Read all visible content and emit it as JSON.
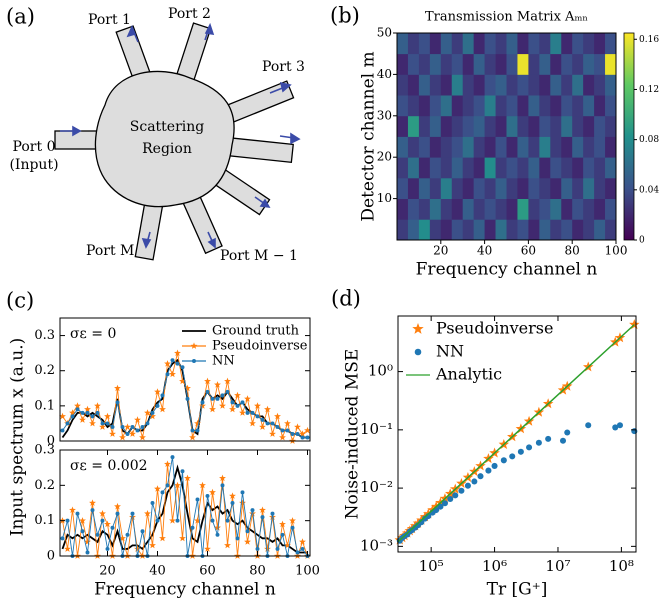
{
  "panel_a": {
    "panel_label": "(a)",
    "port_1": "Port 1",
    "port_2": "Port 2",
    "port_3": "Port 3",
    "port_0": "Port 0",
    "port_0_note": "(Input)",
    "region_line_1": "Scattering",
    "region_line_2": "Region",
    "port_m": "Port M",
    "port_m_minus_1": "Port M − 1"
  },
  "chart_data": [
    {
      "type": "heatmap",
      "panel_label": "(b)",
      "title": "Transmission Matrix Aₘₙ",
      "xlabel": "Frequency channel n",
      "ylabel": "Detector channel m",
      "xlim": [
        0,
        100
      ],
      "ylim": [
        0,
        50
      ],
      "xticks": [
        20,
        40,
        60,
        80,
        100
      ],
      "yticks": [
        10,
        20,
        30,
        40,
        50
      ],
      "zlim": [
        0,
        0.165
      ],
      "cticks": [
        0,
        0.04,
        0.08,
        0.12,
        0.16
      ],
      "colormap": [
        "#440154",
        "#3b528b",
        "#21918c",
        "#5ec962",
        "#fde725"
      ],
      "z": [
        [
          0.03,
          0.05,
          0.08,
          0.03,
          0.02,
          0.04,
          0.03,
          0.05,
          0.02,
          0.06,
          0.03,
          0.04,
          0.02,
          0.05,
          0.03,
          0.04,
          0.02,
          0.03,
          0.05,
          0.03
        ],
        [
          0.02,
          0.04,
          0.03,
          0.06,
          0.03,
          0.02,
          0.05,
          0.03,
          0.04,
          0.03,
          0.02,
          0.09,
          0.03,
          0.04,
          0.06,
          0.02,
          0.04,
          0.03,
          0.02,
          0.04
        ],
        [
          0.04,
          0.02,
          0.05,
          0.03,
          0.07,
          0.03,
          0.02,
          0.04,
          0.03,
          0.05,
          0.03,
          0.02,
          0.04,
          0.03,
          0.02,
          0.05,
          0.03,
          0.06,
          0.03,
          0.02
        ],
        [
          0.03,
          0.06,
          0.02,
          0.04,
          0.03,
          0.05,
          0.03,
          0.02,
          0.08,
          0.03,
          0.04,
          0.03,
          0.05,
          0.02,
          0.04,
          0.03,
          0.02,
          0.04,
          0.03,
          0.05
        ],
        [
          0.05,
          0.03,
          0.04,
          0.02,
          0.03,
          0.04,
          0.06,
          0.03,
          0.02,
          0.04,
          0.02,
          0.05,
          0.03,
          0.07,
          0.03,
          0.02,
          0.05,
          0.03,
          0.04,
          0.02
        ],
        [
          0.02,
          0.09,
          0.03,
          0.05,
          0.02,
          0.03,
          0.04,
          0.05,
          0.03,
          0.02,
          0.06,
          0.03,
          0.02,
          0.04,
          0.03,
          0.06,
          0.03,
          0.02,
          0.04,
          0.03
        ],
        [
          0.04,
          0.03,
          0.02,
          0.04,
          0.06,
          0.02,
          0.03,
          0.04,
          0.07,
          0.03,
          0.04,
          0.02,
          0.05,
          0.03,
          0.02,
          0.04,
          0.03,
          0.05,
          0.02,
          0.04
        ],
        [
          0.03,
          0.02,
          0.05,
          0.03,
          0.02,
          0.07,
          0.03,
          0.02,
          0.04,
          0.05,
          0.03,
          0.04,
          0.03,
          0.02,
          0.05,
          0.03,
          0.06,
          0.02,
          0.03,
          0.05
        ],
        [
          0.02,
          0.04,
          0.03,
          0.05,
          0.03,
          0.04,
          0.02,
          0.05,
          0.03,
          0.02,
          0.04,
          0.16,
          0.03,
          0.05,
          0.02,
          0.04,
          0.03,
          0.05,
          0.04,
          0.16
        ],
        [
          0.05,
          0.03,
          0.04,
          0.02,
          0.05,
          0.03,
          0.06,
          0.02,
          0.04,
          0.03,
          0.05,
          0.02,
          0.04,
          0.03,
          0.07,
          0.02,
          0.04,
          0.03,
          0.02,
          0.04
        ]
      ]
    },
    {
      "type": "line",
      "panel_label": "(c)",
      "ylabel": "Input spectrum x (a.u.)",
      "annotation": "σε = 0",
      "legend": "upper right",
      "xlim": [
        1,
        101
      ],
      "ylim": [
        0,
        0.35
      ],
      "yticks": [
        0,
        0.1,
        0.2,
        0.3
      ],
      "x": [
        2,
        4,
        6,
        8,
        10,
        12,
        14,
        16,
        18,
        20,
        22,
        24,
        26,
        28,
        30,
        32,
        34,
        36,
        38,
        40,
        42,
        44,
        46,
        48,
        50,
        52,
        54,
        56,
        58,
        60,
        62,
        64,
        66,
        68,
        70,
        72,
        74,
        76,
        78,
        80,
        82,
        84,
        86,
        88,
        90,
        92,
        94,
        96,
        98,
        100
      ],
      "series": [
        {
          "name": "Ground truth",
          "color": "#000000",
          "marker": "none",
          "values": [
            0.01,
            0.03,
            0.06,
            0.08,
            0.08,
            0.07,
            0.08,
            0.07,
            0.06,
            0.04,
            0.05,
            0.12,
            0.03,
            0.02,
            0.04,
            0.03,
            0.03,
            0.05,
            0.09,
            0.11,
            0.12,
            0.2,
            0.22,
            0.23,
            0.2,
            0.12,
            0.03,
            0.02,
            0.12,
            0.14,
            0.12,
            0.13,
            0.12,
            0.14,
            0.12,
            0.1,
            0.11,
            0.09,
            0.08,
            0.07,
            0.07,
            0.05,
            0.05,
            0.04,
            0.03,
            0.03,
            0.02,
            0.02,
            0.01,
            0.01
          ]
        },
        {
          "name": "Pseudoinverse",
          "color": "#ff7f0e",
          "marker": "star",
          "values": [
            0.07,
            0.05,
            0.08,
            0.1,
            0.06,
            0.09,
            0.05,
            0.1,
            0.04,
            0.07,
            0.02,
            0.15,
            0.01,
            0.04,
            0.02,
            0.06,
            0.01,
            0.08,
            0.07,
            0.14,
            0.09,
            0.22,
            0.19,
            0.25,
            0.17,
            0.15,
            0.01,
            0.05,
            0.1,
            0.17,
            0.09,
            0.16,
            0.1,
            0.17,
            0.09,
            0.13,
            0.08,
            0.12,
            0.05,
            0.1,
            0.04,
            0.09,
            0.02,
            0.07,
            0.01,
            0.05,
            0.0,
            0.04,
            0.02,
            0.03
          ]
        },
        {
          "name": "NN",
          "color": "#1f77b4",
          "marker": "circle",
          "values": [
            0.03,
            0.05,
            0.07,
            0.09,
            0.08,
            0.08,
            0.07,
            0.08,
            0.05,
            0.05,
            0.04,
            0.11,
            0.04,
            0.02,
            0.04,
            0.03,
            0.04,
            0.05,
            0.08,
            0.1,
            0.13,
            0.19,
            0.23,
            0.22,
            0.21,
            0.12,
            0.03,
            0.03,
            0.11,
            0.14,
            0.12,
            0.12,
            0.13,
            0.14,
            0.11,
            0.1,
            0.11,
            0.08,
            0.08,
            0.07,
            0.06,
            0.05,
            0.05,
            0.04,
            0.03,
            0.03,
            0.02,
            0.02,
            0.01,
            0.01
          ]
        }
      ]
    },
    {
      "type": "line",
      "xlabel": "Frequency channel n",
      "annotation": "σε = 0.002",
      "xlim": [
        1,
        101
      ],
      "ylim": [
        0,
        0.3
      ],
      "xticks": [
        20,
        40,
        60,
        80,
        100
      ],
      "yticks": [
        0,
        0.1,
        0.2,
        0.3
      ],
      "x": [
        2,
        4,
        6,
        8,
        10,
        12,
        14,
        16,
        18,
        20,
        22,
        24,
        26,
        28,
        30,
        32,
        34,
        36,
        38,
        40,
        42,
        44,
        46,
        48,
        50,
        52,
        54,
        56,
        58,
        60,
        62,
        64,
        66,
        68,
        70,
        72,
        74,
        76,
        78,
        80,
        82,
        84,
        86,
        88,
        90,
        92,
        94,
        96,
        98,
        100
      ],
      "series": [
        {
          "color": "#000000",
          "marker": "none",
          "values": [
            0.02,
            0.06,
            0.05,
            0.06,
            0.05,
            0.06,
            0.05,
            0.04,
            0.07,
            0.06,
            0.03,
            0.07,
            0.02,
            0.02,
            0.03,
            0.03,
            0.02,
            0.04,
            0.06,
            0.1,
            0.12,
            0.18,
            0.2,
            0.25,
            0.2,
            0.12,
            0.05,
            0.04,
            0.1,
            0.15,
            0.13,
            0.14,
            0.12,
            0.13,
            0.1,
            0.09,
            0.1,
            0.08,
            0.07,
            0.06,
            0.05,
            0.05,
            0.04,
            0.05,
            0.03,
            0.03,
            0.02,
            0.01,
            0.01,
            0.01
          ]
        },
        {
          "color": "#ff7f0e",
          "marker": "star",
          "values": [
            0.1,
            0.02,
            0.13,
            0.0,
            0.1,
            0.04,
            0.15,
            0.0,
            0.12,
            0.09,
            0.0,
            0.14,
            0.05,
            0.0,
            0.11,
            0.02,
            0.0,
            0.12,
            0.03,
            0.19,
            0.05,
            0.26,
            0.1,
            0.2,
            0.05,
            0.22,
            0.0,
            0.1,
            0.2,
            0.02,
            0.18,
            0.08,
            0.22,
            0.03,
            0.17,
            0.0,
            0.15,
            0.04,
            0.12,
            0.0,
            0.13,
            0.02,
            0.11,
            0.0,
            0.09,
            0.03,
            0.1,
            0.0,
            0.04,
            0.0
          ]
        },
        {
          "color": "#1f77b4",
          "marker": "circle",
          "values": [
            0.05,
            0.1,
            0.0,
            0.12,
            0.07,
            0.01,
            0.13,
            0.06,
            0.1,
            0.02,
            0.08,
            0.12,
            0.0,
            0.06,
            0.12,
            0.0,
            0.07,
            0.0,
            0.15,
            0.1,
            0.18,
            0.2,
            0.28,
            0.1,
            0.24,
            0.0,
            0.08,
            0.16,
            0.0,
            0.17,
            0.1,
            0.06,
            0.2,
            0.1,
            0.15,
            0.05,
            0.18,
            0.07,
            0.13,
            0.02,
            0.11,
            0.0,
            0.12,
            0.02,
            0.06,
            0.0,
            0.08,
            0.01,
            0.02,
            0.0
          ]
        }
      ]
    },
    {
      "type": "scatter",
      "panel_label": "(d)",
      "xlabel": "Tr [G⁺]",
      "ylabel": "Noise-induced MSE",
      "legend": "upper left",
      "xscale": "log",
      "yscale": "log",
      "xlim": [
        30000,
        170000000
      ],
      "ylim": [
        0.0008,
        9
      ],
      "xticks": [
        {
          "value": 100000,
          "label": "10⁵"
        },
        {
          "value": 1000000,
          "label": "10⁶"
        },
        {
          "value": 10000000,
          "label": "10⁷"
        },
        {
          "value": 100000000,
          "label": "10⁸"
        }
      ],
      "yticks": [
        {
          "value": 0.001,
          "label": "10⁻³"
        },
        {
          "value": 0.01,
          "label": "10⁻²"
        },
        {
          "value": 0.1,
          "label": "10⁻¹"
        },
        {
          "value": 1,
          "label": "10⁰"
        }
      ],
      "series": [
        {
          "name": "Pseudoinverse",
          "color": "#ff7f0e",
          "marker": "star",
          "x": [
            32000,
            35000,
            38000,
            42000,
            46000,
            50000,
            56000,
            62000,
            70000,
            80000,
            90000,
            105000,
            120000,
            140000,
            165000,
            200000,
            240000,
            300000,
            380000,
            480000,
            600000,
            800000,
            1000000,
            1400000,
            1900000,
            2600000,
            3500000,
            5000000,
            7000000,
            12000000,
            14000000,
            30000000,
            80000000,
            95000000,
            160000000
          ],
          "values": [
            0.00128,
            0.0014,
            0.00152,
            0.00168,
            0.00184,
            0.002,
            0.00224,
            0.00248,
            0.0028,
            0.0032,
            0.0036,
            0.0042,
            0.0048,
            0.0056,
            0.0066,
            0.008,
            0.0096,
            0.012,
            0.0152,
            0.0192,
            0.024,
            0.032,
            0.04,
            0.056,
            0.076,
            0.104,
            0.14,
            0.2,
            0.28,
            0.48,
            0.56,
            1.2,
            3.2,
            3.8,
            6.4
          ]
        },
        {
          "name": "NN",
          "color": "#1f77b4",
          "marker": "circle",
          "x": [
            32000,
            35000,
            38000,
            42000,
            46000,
            50000,
            56000,
            62000,
            70000,
            80000,
            90000,
            105000,
            120000,
            140000,
            165000,
            200000,
            240000,
            300000,
            380000,
            480000,
            600000,
            800000,
            1000000,
            1400000,
            1900000,
            2600000,
            3500000,
            5000000,
            7000000,
            12000000,
            14000000,
            30000000,
            80000000,
            95000000,
            160000000
          ],
          "values": [
            0.00125,
            0.0014,
            0.0015,
            0.0016,
            0.0018,
            0.0019,
            0.0021,
            0.0023,
            0.0026,
            0.003,
            0.0033,
            0.0038,
            0.0042,
            0.0048,
            0.0055,
            0.0065,
            0.0075,
            0.009,
            0.011,
            0.013,
            0.016,
            0.02,
            0.024,
            0.03,
            0.035,
            0.042,
            0.05,
            0.06,
            0.07,
            0.065,
            0.09,
            0.12,
            0.11,
            0.12,
            0.095
          ]
        },
        {
          "name": "Analytic",
          "color": "#2ca02c",
          "marker": "line",
          "x": [
            30000,
            160000000
          ],
          "values": [
            0.0012,
            6.4
          ]
        }
      ]
    }
  ]
}
